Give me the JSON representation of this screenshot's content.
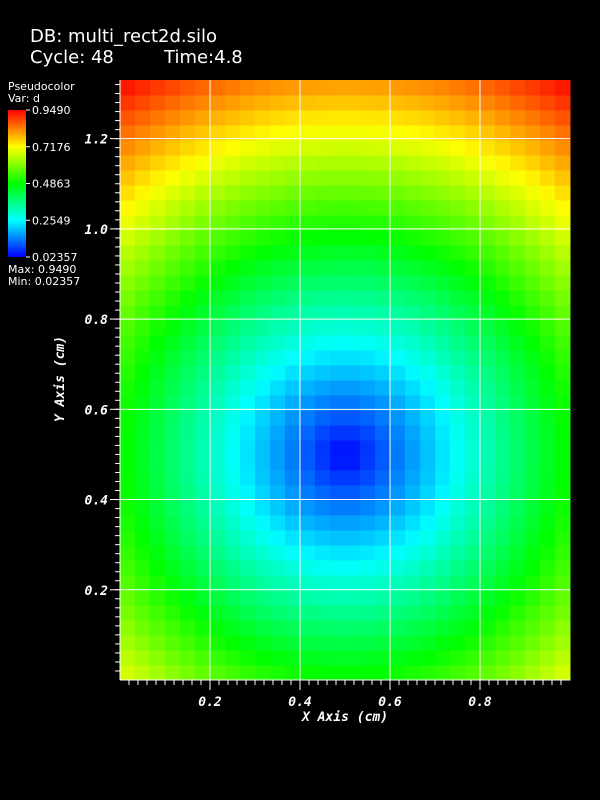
{
  "header": {
    "db": "DB: multi_rect2d.silo",
    "cycle": "Cycle: 48",
    "time": "Time:4.8"
  },
  "legend": {
    "plot_type": "Pseudocolor",
    "var": "Var: d",
    "ticks": [
      "0.9490",
      "0.7176",
      "0.4863",
      "0.2549",
      "0.02357"
    ],
    "max": "Max: 0.9490",
    "min": "Min: 0.02357",
    "colormap": [
      "#0000ff",
      "#00ffff",
      "#00ff00",
      "#ffff00",
      "#ff0000"
    ]
  },
  "chart_data": {
    "type": "heatmap",
    "xlabel": "X Axis (cm)",
    "ylabel": "Y Axis (cm)",
    "xlim": [
      0,
      1.0
    ],
    "ylim": [
      0,
      1.33
    ],
    "xticks": [
      "0.2",
      "0.4",
      "0.6",
      "0.8"
    ],
    "xtick_values": [
      0.2,
      0.4,
      0.6,
      0.8
    ],
    "yticks": [
      "0.2",
      "0.4",
      "0.6",
      "0.8",
      "1.0",
      "1.2"
    ],
    "ytick_values": [
      0.2,
      0.4,
      0.6,
      0.8,
      1.0,
      1.2
    ],
    "grid": true,
    "grid_columns": 30,
    "grid_rows": 40,
    "field": {
      "variable": "d",
      "shape": "radial",
      "center": [
        0.5,
        0.5
      ],
      "min_value": 0.02357,
      "max_value": 0.949
    }
  }
}
